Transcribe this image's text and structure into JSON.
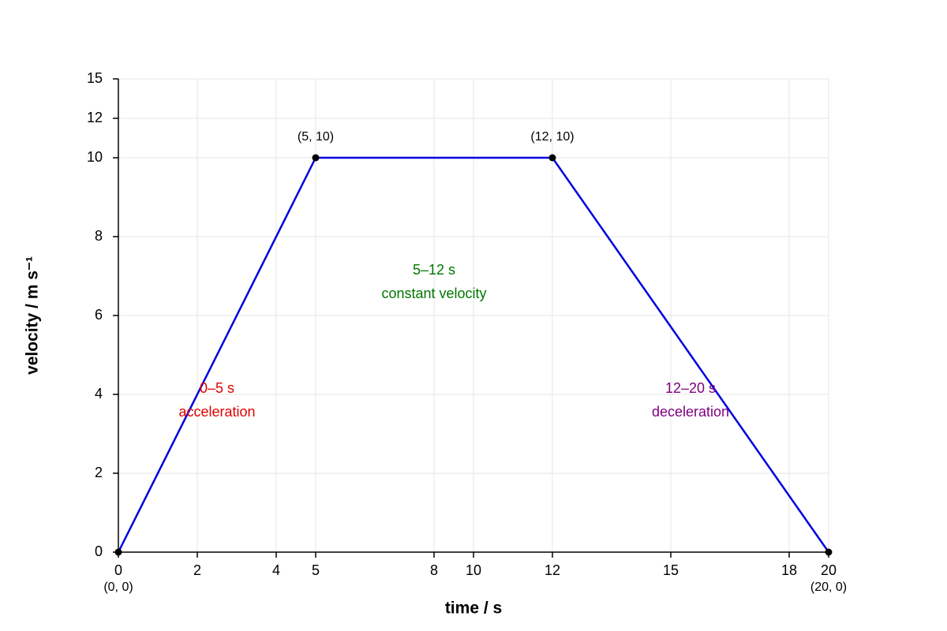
{
  "chart_data": {
    "type": "line",
    "xlabel": "time / s",
    "ylabel": "velocity / m s⁻¹",
    "x": [
      0,
      5,
      12,
      20
    ],
    "values": [
      0,
      10,
      10,
      0
    ],
    "color": "#0000dd",
    "point_labels": [
      "(0, 0)",
      "(5, 10)",
      "(12, 10)",
      "(20, 0)"
    ],
    "xlim": [
      0,
      20
    ],
    "ylim": [
      0,
      15
    ],
    "xticks": [
      0,
      2,
      4,
      5,
      8,
      10,
      12,
      15,
      18,
      20
    ],
    "yticks": [
      0,
      2,
      4,
      6,
      8,
      10,
      12,
      15
    ],
    "grid": true,
    "annotations": [
      {
        "lines": [
          "0–5 s",
          "acceleration"
        ],
        "color": "#dd0000"
      },
      {
        "lines": [
          "5–12 s",
          "constant velocity"
        ],
        "color": "#007700"
      },
      {
        "lines": [
          "12–20 s",
          "deceleration"
        ],
        "color": "#800080"
      }
    ]
  }
}
